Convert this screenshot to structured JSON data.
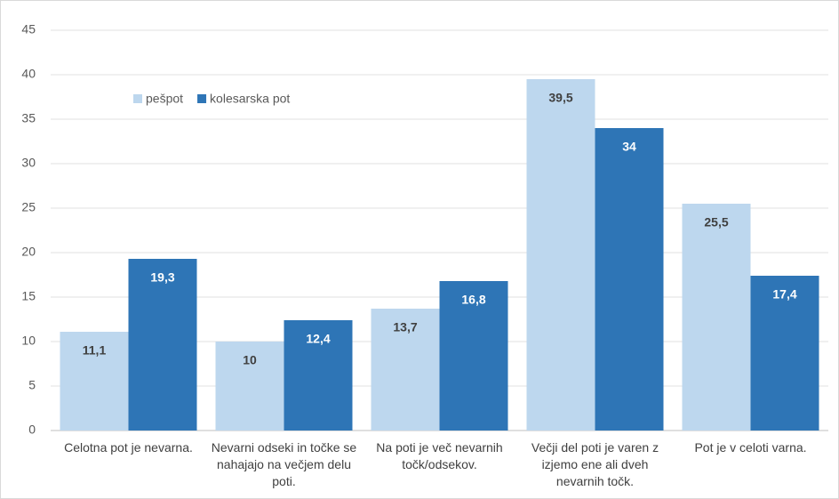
{
  "chart_data": {
    "type": "bar",
    "categories": [
      "Celotna pot je nevarna.",
      "Nevarni odseki in točke se nahajajo na večjem delu poti.",
      "Na poti je več nevarnih točk/odsekov.",
      "Večji del poti je varen z izjemo ene ali dveh nevarnih točk.",
      "Pot je v celoti varna."
    ],
    "series": [
      {
        "name": "pešpot",
        "color": "#bdd7ee",
        "values": [
          11.1,
          10,
          13.7,
          39.5,
          25.5
        ],
        "value_labels": [
          "11,1",
          "10",
          "13,7",
          "39,5",
          "25,5"
        ]
      },
      {
        "name": "kolesarska pot",
        "color": "#2e75b6",
        "values": [
          19.3,
          12.4,
          16.8,
          34,
          17.4
        ],
        "value_labels": [
          "19,3",
          "12,4",
          "16,8",
          "34",
          "17,4"
        ]
      }
    ],
    "ylim": [
      0,
      45
    ],
    "yticks": [
      0,
      5,
      10,
      15,
      20,
      25,
      30,
      35,
      40,
      45
    ],
    "grid": true,
    "legend": "top-left"
  }
}
